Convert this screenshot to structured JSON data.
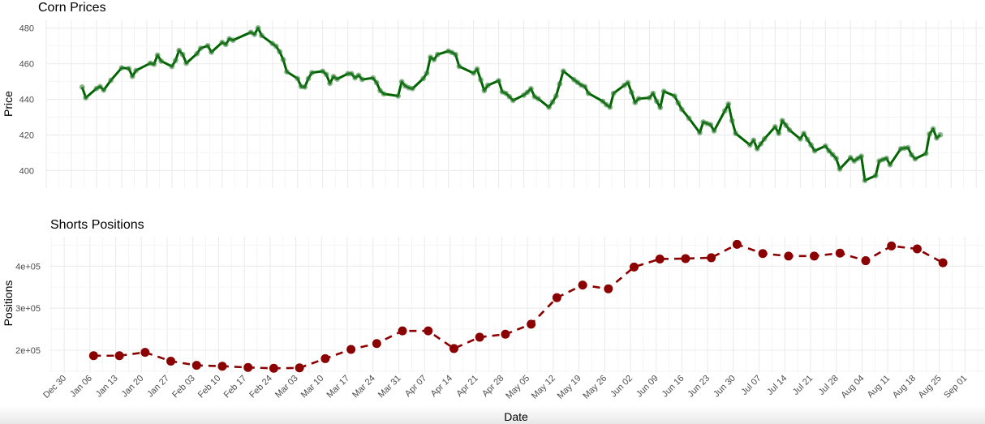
{
  "chart_data": [
    {
      "type": "line",
      "title": "Corn Prices",
      "xlabel": "",
      "ylabel": "Price",
      "ylim": [
        390.2,
        484.4
      ],
      "xlim": [
        "2024-12-23",
        "2025-09-10"
      ],
      "y_ticks": [
        400,
        420,
        440,
        460,
        480
      ],
      "grid": true,
      "line_color": "#006400",
      "point_color": "#2e7d32",
      "x": [
        "2025-01-02",
        "2025-01-03",
        "2025-01-06",
        "2025-01-07",
        "2025-01-08",
        "2025-01-10",
        "2025-01-13",
        "2025-01-15",
        "2025-01-16",
        "2025-01-17",
        "2025-01-21",
        "2025-01-22",
        "2025-01-23",
        "2025-01-24",
        "2025-01-27",
        "2025-01-28",
        "2025-01-29",
        "2025-01-30",
        "2025-01-31",
        "2025-02-03",
        "2025-02-04",
        "2025-02-06",
        "2025-02-07",
        "2025-02-10",
        "2025-02-11",
        "2025-02-12",
        "2025-02-13",
        "2025-02-18",
        "2025-02-19",
        "2025-02-20",
        "2025-02-21",
        "2025-02-24",
        "2025-02-25",
        "2025-02-26",
        "2025-02-27",
        "2025-02-28",
        "2025-03-03",
        "2025-03-04",
        "2025-03-05",
        "2025-03-06",
        "2025-03-07",
        "2025-03-10",
        "2025-03-11",
        "2025-03-12",
        "2025-03-13",
        "2025-03-14",
        "2025-03-17",
        "2025-03-18",
        "2025-03-19",
        "2025-03-20",
        "2025-03-21",
        "2025-03-24",
        "2025-03-25",
        "2025-03-26",
        "2025-03-27",
        "2025-03-31",
        "2025-04-01",
        "2025-04-02",
        "2025-04-03",
        "2025-04-04",
        "2025-04-07",
        "2025-04-08",
        "2025-04-09",
        "2025-04-10",
        "2025-04-11",
        "2025-04-14",
        "2025-04-15",
        "2025-04-16",
        "2025-04-17",
        "2025-04-21",
        "2025-04-22",
        "2025-04-23",
        "2025-04-24",
        "2025-04-25",
        "2025-04-28",
        "2025-04-29",
        "2025-04-30",
        "2025-05-01",
        "2025-05-02",
        "2025-05-05",
        "2025-05-06",
        "2025-05-07",
        "2025-05-08",
        "2025-05-09",
        "2025-05-12",
        "2025-05-13",
        "2025-05-14",
        "2025-05-15",
        "2025-05-16",
        "2025-05-19",
        "2025-05-20",
        "2025-05-21",
        "2025-05-22",
        "2025-05-23",
        "2025-05-27",
        "2025-05-28",
        "2025-05-29",
        "2025-05-30",
        "2025-06-02",
        "2025-06-03",
        "2025-06-04",
        "2025-06-05",
        "2025-06-06",
        "2025-06-09",
        "2025-06-10",
        "2025-06-11",
        "2025-06-12",
        "2025-06-13",
        "2025-06-16",
        "2025-06-17",
        "2025-06-18",
        "2025-06-20",
        "2025-06-23",
        "2025-06-24",
        "2025-06-25",
        "2025-06-26",
        "2025-06-27",
        "2025-06-30",
        "2025-07-01",
        "2025-07-02",
        "2025-07-03",
        "2025-07-07",
        "2025-07-08",
        "2025-07-09",
        "2025-07-10",
        "2025-07-11",
        "2025-07-14",
        "2025-07-15",
        "2025-07-16",
        "2025-07-17",
        "2025-07-18",
        "2025-07-21",
        "2025-07-22",
        "2025-07-23",
        "2025-07-24",
        "2025-07-25",
        "2025-07-28",
        "2025-07-29",
        "2025-07-30",
        "2025-07-31",
        "2025-08-01",
        "2025-08-04",
        "2025-08-05",
        "2025-08-06",
        "2025-08-07",
        "2025-08-08",
        "2025-08-11",
        "2025-08-12",
        "2025-08-13",
        "2025-08-14",
        "2025-08-15",
        "2025-08-18",
        "2025-08-19",
        "2025-08-20",
        "2025-08-21",
        "2025-08-22",
        "2025-08-25",
        "2025-08-26",
        "2025-08-27",
        "2025-08-28",
        "2025-08-29"
      ],
      "y": [
        446.9,
        440.9,
        446.1,
        447.2,
        445.2,
        450.7,
        457.7,
        457.3,
        452.9,
        456.2,
        460.3,
        459.7,
        464.8,
        461.5,
        458.5,
        461.8,
        467.5,
        465.2,
        460.3,
        465.7,
        468.7,
        470.1,
        466.5,
        472.0,
        470.8,
        474.0,
        473.2,
        477.7,
        476.5,
        480.1,
        475.8,
        471.3,
        469.8,
        466.8,
        462.3,
        455.5,
        451.7,
        447.2,
        446.9,
        451.7,
        455.0,
        455.8,
        454.0,
        449.0,
        452.8,
        451.4,
        454.4,
        454.4,
        452.1,
        453.5,
        451.2,
        452.0,
        449.4,
        444.9,
        443.1,
        441.9,
        449.9,
        447.5,
        446.5,
        446.0,
        451.7,
        454.7,
        463.7,
        462.3,
        465.2,
        467.1,
        466.3,
        465.2,
        458.5,
        454.7,
        457.0,
        451.0,
        444.9,
        447.9,
        450.5,
        444.2,
        443.4,
        441.5,
        439.4,
        442.4,
        444.0,
        446.0,
        441.5,
        440.4,
        435.6,
        438.5,
        441.9,
        448.7,
        455.9,
        451.0,
        449.5,
        448.0,
        447.2,
        443.4,
        438.9,
        437.0,
        435.6,
        443.4,
        447.9,
        449.4,
        444.0,
        438.2,
        440.4,
        440.9,
        443.4,
        439.0,
        435.4,
        444.5,
        441.9,
        438.0,
        434.4,
        429.4,
        421.3,
        427.3,
        426.5,
        425.8,
        422.3,
        433.6,
        437.4,
        428.0,
        420.9,
        414.4,
        417.1,
        412.3,
        415.0,
        417.8,
        424.6,
        420.9,
        428.1,
        425.5,
        422.8,
        417.8,
        420.9,
        417.5,
        414.4,
        411.1,
        413.8,
        411.1,
        409.0,
        406.9,
        400.9,
        407.3,
        405.4,
        406.8,
        408.1,
        394.5,
        397.2,
        405.4,
        406.2,
        406.9,
        403.3,
        412.3,
        412.6,
        412.9,
        408.8,
        406.6,
        409.6,
        420.5,
        423.4,
        418.3,
        420.1
      ]
    },
    {
      "type": "line",
      "title": "Shorts Positions",
      "xlabel": "Date",
      "ylabel": "Positions",
      "ylim": [
        146000,
        470000
      ],
      "xlim": [
        "2024-12-26",
        "2025-09-06"
      ],
      "y_ticks": [
        {
          "value": 200000,
          "label": "2e+05"
        },
        {
          "value": 300000,
          "label": "3e+05"
        },
        {
          "value": 400000,
          "label": "4e+05"
        }
      ],
      "grid": true,
      "line_style": "dashed",
      "line_color": "#8b0000",
      "point_color": "#8b0000",
      "x_ticks": [
        {
          "x": "2024-12-30",
          "label": "Dec 30"
        },
        {
          "x": "2025-01-06",
          "label": "Jan 06"
        },
        {
          "x": "2025-01-13",
          "label": "Jan 13"
        },
        {
          "x": "2025-01-20",
          "label": "Jan 20"
        },
        {
          "x": "2025-01-27",
          "label": "Jan 27"
        },
        {
          "x": "2025-02-03",
          "label": "Feb 03"
        },
        {
          "x": "2025-02-10",
          "label": "Feb 10"
        },
        {
          "x": "2025-02-17",
          "label": "Feb 17"
        },
        {
          "x": "2025-02-24",
          "label": "Feb 24"
        },
        {
          "x": "2025-03-03",
          "label": "Mar 03"
        },
        {
          "x": "2025-03-10",
          "label": "Mar 10"
        },
        {
          "x": "2025-03-17",
          "label": "Mar 17"
        },
        {
          "x": "2025-03-24",
          "label": "Mar 24"
        },
        {
          "x": "2025-03-31",
          "label": "Mar 31"
        },
        {
          "x": "2025-04-07",
          "label": "Apr 07"
        },
        {
          "x": "2025-04-14",
          "label": "Apr 14"
        },
        {
          "x": "2025-04-21",
          "label": "Apr 21"
        },
        {
          "x": "2025-04-28",
          "label": "Apr 28"
        },
        {
          "x": "2025-05-05",
          "label": "May 05"
        },
        {
          "x": "2025-05-12",
          "label": "May 12"
        },
        {
          "x": "2025-05-19",
          "label": "May 19"
        },
        {
          "x": "2025-05-26",
          "label": "May 26"
        },
        {
          "x": "2025-06-02",
          "label": "Jun 02"
        },
        {
          "x": "2025-06-09",
          "label": "Jun 09"
        },
        {
          "x": "2025-06-16",
          "label": "Jun 16"
        },
        {
          "x": "2025-06-23",
          "label": "Jun 23"
        },
        {
          "x": "2025-06-30",
          "label": "Jun 30"
        },
        {
          "x": "2025-07-07",
          "label": "Jul 07"
        },
        {
          "x": "2025-07-14",
          "label": "Jul 14"
        },
        {
          "x": "2025-07-21",
          "label": "Jul 21"
        },
        {
          "x": "2025-07-28",
          "label": "Jul 28"
        },
        {
          "x": "2025-08-04",
          "label": "Aug 04"
        },
        {
          "x": "2025-08-11",
          "label": "Aug 11"
        },
        {
          "x": "2025-08-18",
          "label": "Aug 18"
        },
        {
          "x": "2025-08-25",
          "label": "Aug 25"
        },
        {
          "x": "2025-09-01",
          "label": "Sep 01"
        }
      ],
      "x": [
        "2025-01-07",
        "2025-01-14",
        "2025-01-21",
        "2025-01-28",
        "2025-02-04",
        "2025-02-11",
        "2025-02-18",
        "2025-02-25",
        "2025-03-04",
        "2025-03-11",
        "2025-03-18",
        "2025-03-25",
        "2025-04-01",
        "2025-04-08",
        "2025-04-15",
        "2025-04-22",
        "2025-04-29",
        "2025-05-06",
        "2025-05-13",
        "2025-05-20",
        "2025-05-27",
        "2025-06-03",
        "2025-06-10",
        "2025-06-17",
        "2025-06-24",
        "2025-07-01",
        "2025-07-08",
        "2025-07-15",
        "2025-07-22",
        "2025-07-29",
        "2025-08-05",
        "2025-08-12",
        "2025-08-19",
        "2025-08-26"
      ],
      "y": [
        187000,
        187000,
        195000,
        174000,
        164000,
        162000,
        159000,
        157000,
        158000,
        180000,
        202000,
        216000,
        246000,
        246000,
        204000,
        231000,
        238000,
        262000,
        325000,
        355000,
        346000,
        398000,
        417000,
        418000,
        420000,
        452000,
        430000,
        424000,
        424000,
        431000,
        413000,
        448000,
        441000,
        408000
      ]
    }
  ]
}
